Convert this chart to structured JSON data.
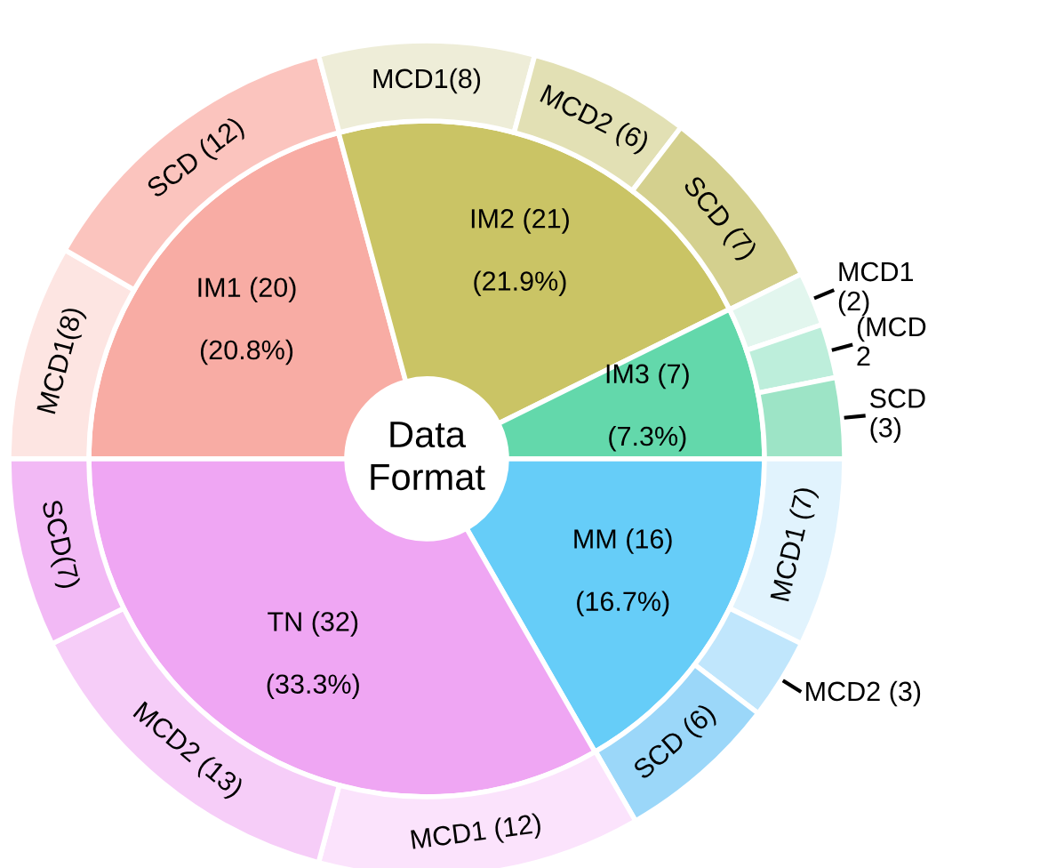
{
  "chart_data": {
    "type": "donut",
    "title": "Data\nFormat",
    "series": [
      {
        "values": [
          20.8,
          21.9,
          7.3,
          16.7,
          33.3
        ],
        "value_labels": [
          "IM1 (20)\n\n(20.8%)",
          "IM2 (21)\n\n(21.9%)",
          "IM3 (7)\n\n(7.3%)",
          "MM (16)\n\n(16.7%)",
          "TN (32)\n\n(33.3%)"
        ],
        "colors": [
          "#f8aca4",
          "#cac465",
          "#63d8ab",
          "#66cdf8",
          "#efa6f3"
        ]
      },
      {
        "values": [
          8,
          12,
          8,
          6,
          7,
          2,
          2,
          3,
          7,
          3,
          6,
          12,
          13,
          7
        ],
        "value_labels": [
          "MCD1(8)",
          "SCD (12)",
          "MCD1(8)",
          "MCD2 (6)",
          "SCD (7)",
          "MCD1\n(2)",
          "(MCD\n2",
          "SCD\n(3)",
          "MCD1 (7)",
          "MCD2 (3)",
          "SCD (6)",
          "MCD1 (12)",
          "MCD2 (13)",
          "SCD(7)"
        ],
        "colors": [
          "#fde5e2",
          "#fbc4be",
          "#eeedd8",
          "#e2e0b4",
          "#d4d08e",
          "#e2f6ee",
          "#bdeedb",
          "#9de4c6",
          "#e1f3fd",
          "#c0e6fc",
          "#9bd7f9",
          "#fbe3fc",
          "#f6cdf8",
          "#f2b9f5"
        ]
      }
    ]
  }
}
